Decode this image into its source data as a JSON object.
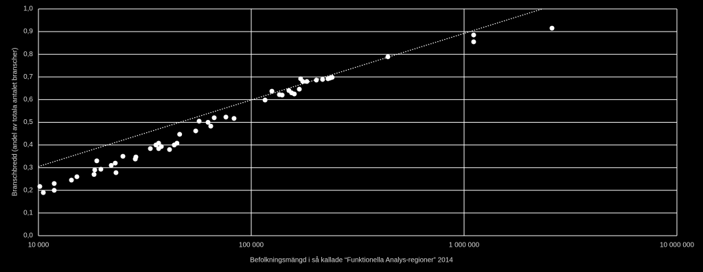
{
  "chart_data": {
    "type": "scatter",
    "x_label": "Befolkningsmängd i så kallade “Funktionella Analys-regioner” 2014",
    "y_label": "Branschbredd (andel av totala antalet branscher)",
    "xscale": "log",
    "grid": true,
    "xlim": [
      10000,
      10000000
    ],
    "ylim": [
      0,
      1
    ],
    "xticks": [
      {
        "value": 10000,
        "label": "10 000"
      },
      {
        "value": 100000,
        "label": "100 000"
      },
      {
        "value": 1000000,
        "label": "1 000 000"
      },
      {
        "value": 10000000,
        "label": "10 000 000"
      }
    ],
    "yticks": [
      {
        "value": 0,
        "label": "0,0"
      },
      {
        "value": 0.1,
        "label": "0,1"
      },
      {
        "value": 0.2,
        "label": "0,2"
      },
      {
        "value": 0.3,
        "label": "0,3"
      },
      {
        "value": 0.4,
        "label": "0,4"
      },
      {
        "value": 0.5,
        "label": "0,5"
      },
      {
        "value": 0.6,
        "label": "0,6"
      },
      {
        "value": 0.7,
        "label": "0,7"
      },
      {
        "value": 0.8,
        "label": "0,8"
      },
      {
        "value": 0.9,
        "label": "0,9"
      },
      {
        "value": 1,
        "label": "1,0"
      }
    ],
    "color": "#ffffff",
    "x": [
      10150,
      10540,
      11860,
      11860,
      14290,
      15160,
      18250,
      18390,
      18800,
      19650,
      21980,
      22960,
      23140,
      24940,
      28510,
      28700,
      33560,
      35640,
      36710,
      36710,
      37800,
      41300,
      43460,
      44760,
      46080,
      54830,
      56880,
      62630,
      64520,
      66960,
      76000,
      83000,
      116100,
      125000,
      135600,
      139700,
      150300,
      154700,
      159300,
      168200,
      170600,
      174500,
      182500,
      202300,
      216300,
      229400,
      234600,
      239900,
      438500,
      1109000,
      1109000,
      2588000
    ],
    "values": [
      0.217,
      0.19,
      0.23,
      0.2,
      0.245,
      0.26,
      0.27,
      0.29,
      0.33,
      0.293,
      0.31,
      0.32,
      0.278,
      0.35,
      0.338,
      0.347,
      0.384,
      0.4,
      0.408,
      0.384,
      0.393,
      0.38,
      0.4,
      0.408,
      0.447,
      0.462,
      0.505,
      0.5,
      0.483,
      0.52,
      0.523,
      0.517,
      0.598,
      0.637,
      0.622,
      0.62,
      0.64,
      0.63,
      0.625,
      0.646,
      0.692,
      0.68,
      0.68,
      0.686,
      0.689,
      0.692,
      0.695,
      0.698,
      0.789,
      0.885,
      0.855,
      0.915
    ],
    "trendline": {
      "x": [
        10000,
        2333000
      ],
      "values": [
        0.305,
        1
      ],
      "color": "#ffffff"
    }
  }
}
